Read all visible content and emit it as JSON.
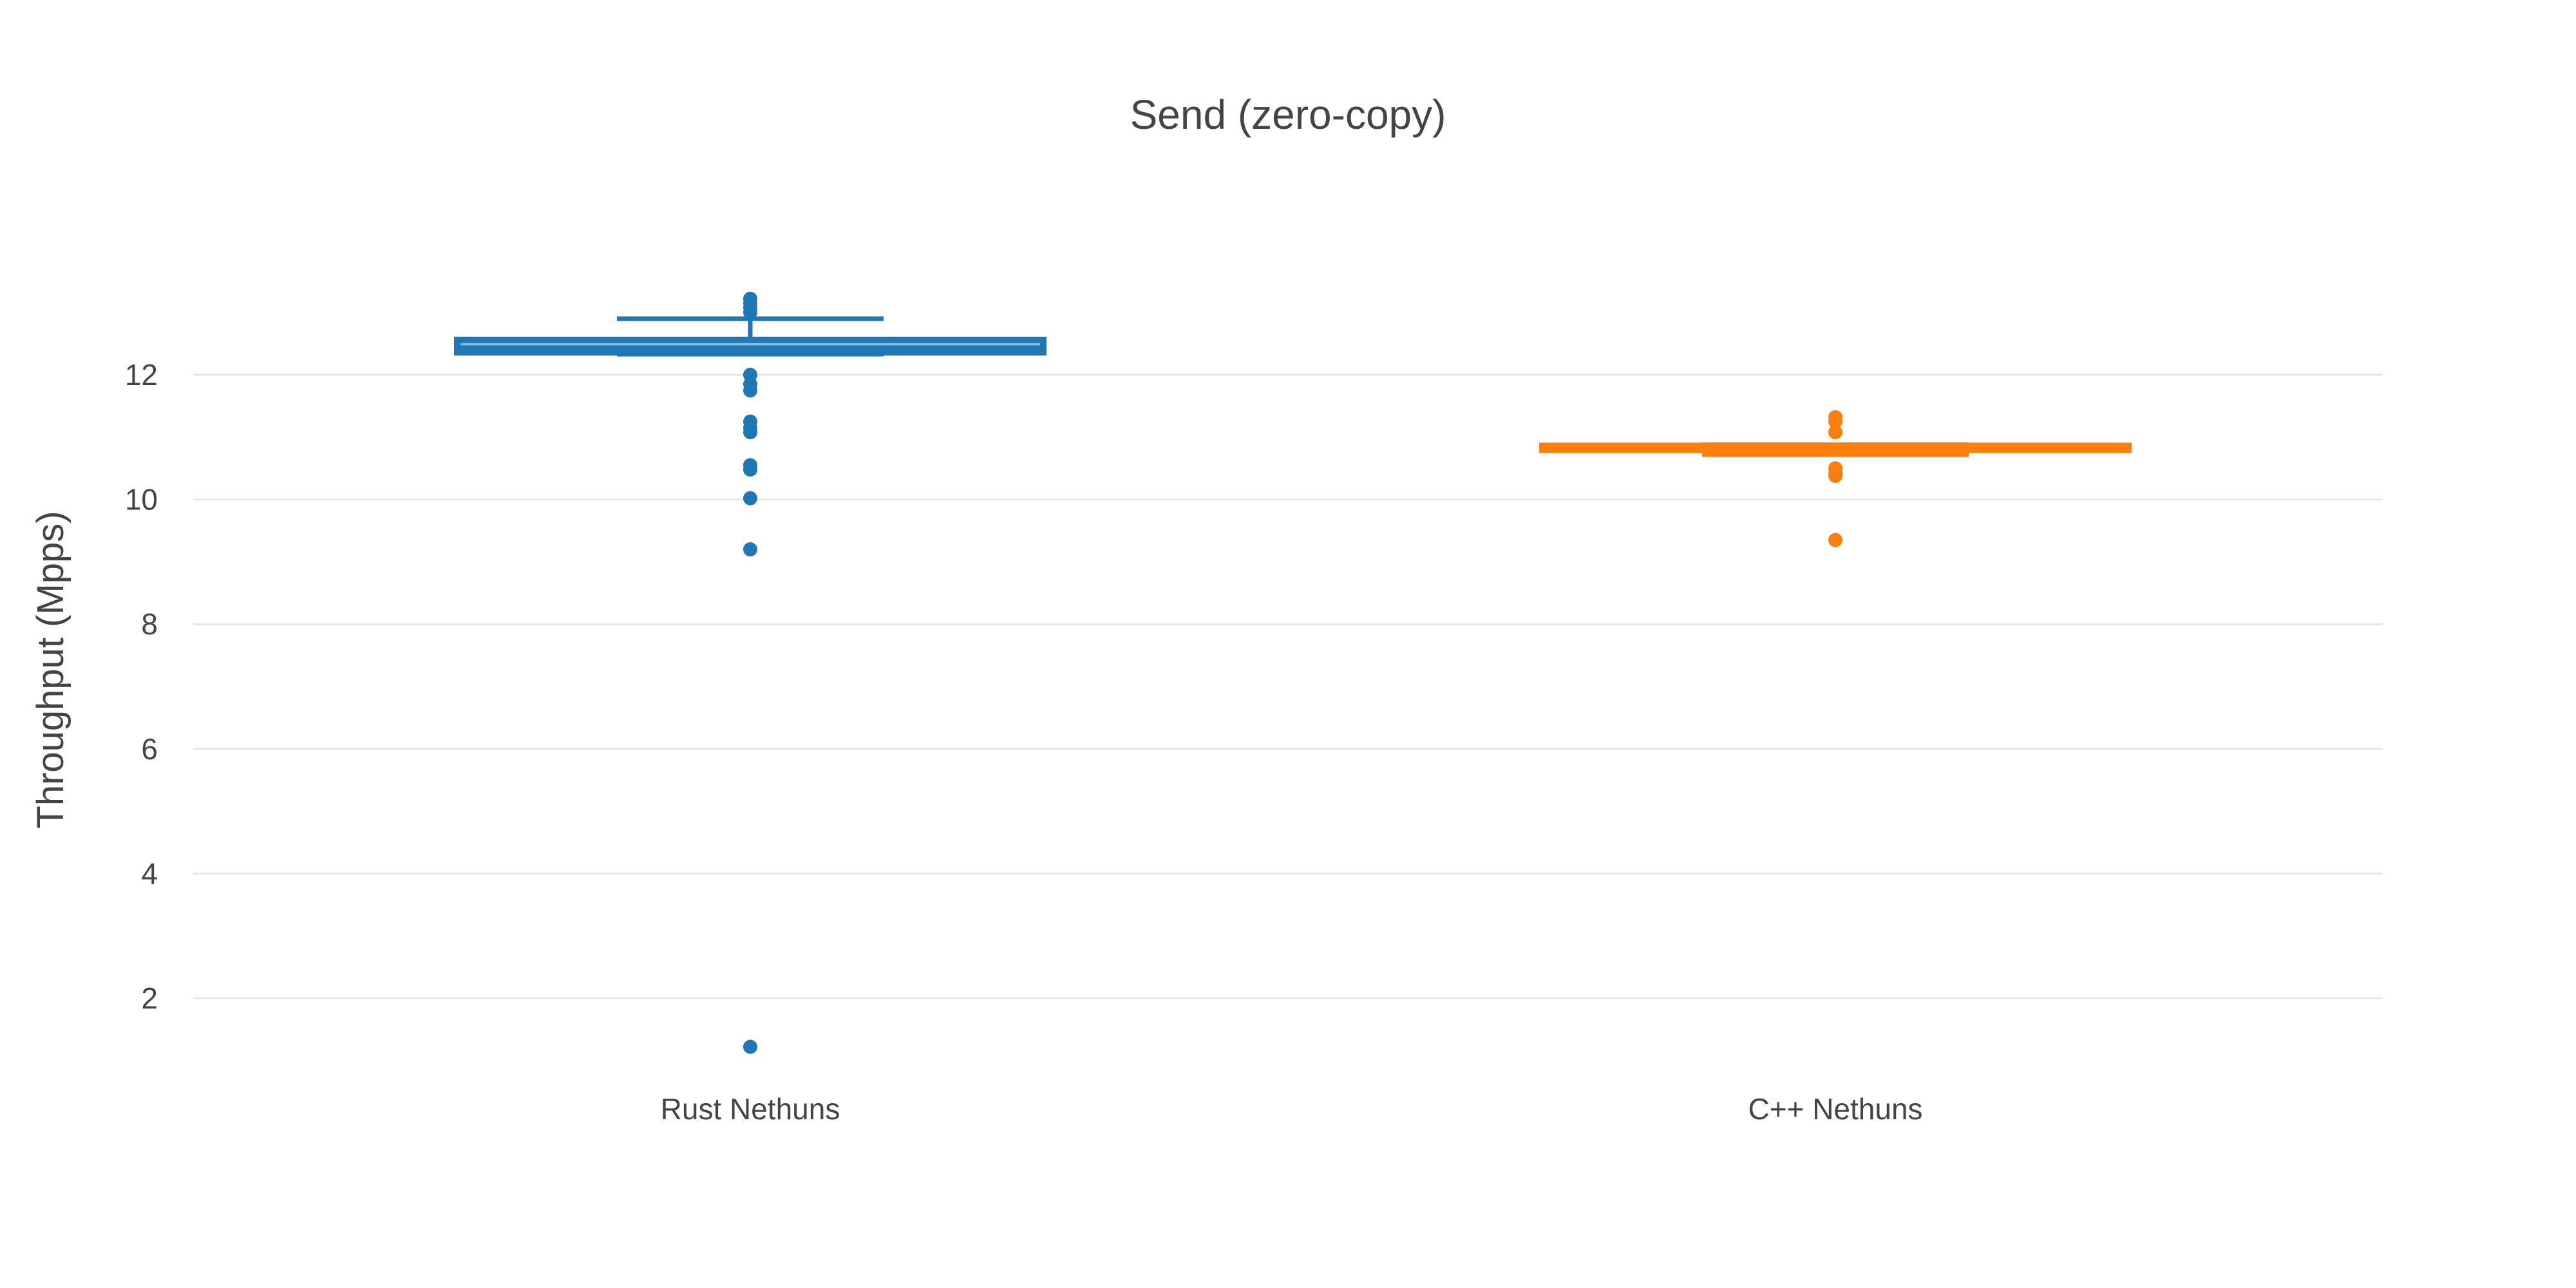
{
  "chart_data": {
    "type": "box",
    "title": "Send (zero-copy)",
    "xlabel": "",
    "ylabel": "Throughput (Mpps)",
    "ylim": [
      0.6,
      14.8
    ],
    "yticks": [
      2,
      4,
      6,
      8,
      10,
      12
    ],
    "ytick_labels": [
      "2",
      "4",
      "6",
      "8",
      "10",
      "12"
    ],
    "grid": true,
    "legend": "none",
    "categories": [
      "Rust Nethuns",
      "C++ Nethuns"
    ],
    "series": [
      {
        "category": "Rust Nethuns",
        "color": "#1f77b4",
        "median": 12.42,
        "q1": 12.36,
        "q3": 12.56,
        "whisker_low": 12.33,
        "whisker_high": 12.9,
        "outliers": [
          13.22,
          13.15,
          13.08,
          13.0,
          12.0,
          11.85,
          11.75,
          11.25,
          11.15,
          11.08,
          10.55,
          10.48,
          10.02,
          9.2,
          1.22
        ]
      },
      {
        "category": "C++ Nethuns",
        "color": "#ff7f0e",
        "median": 10.82,
        "q1": 10.8,
        "q3": 10.86,
        "whisker_low": 10.72,
        "whisker_high": 10.88,
        "outliers": [
          11.32,
          11.25,
          11.08,
          10.5,
          10.42,
          10.38,
          9.35
        ]
      }
    ]
  }
}
